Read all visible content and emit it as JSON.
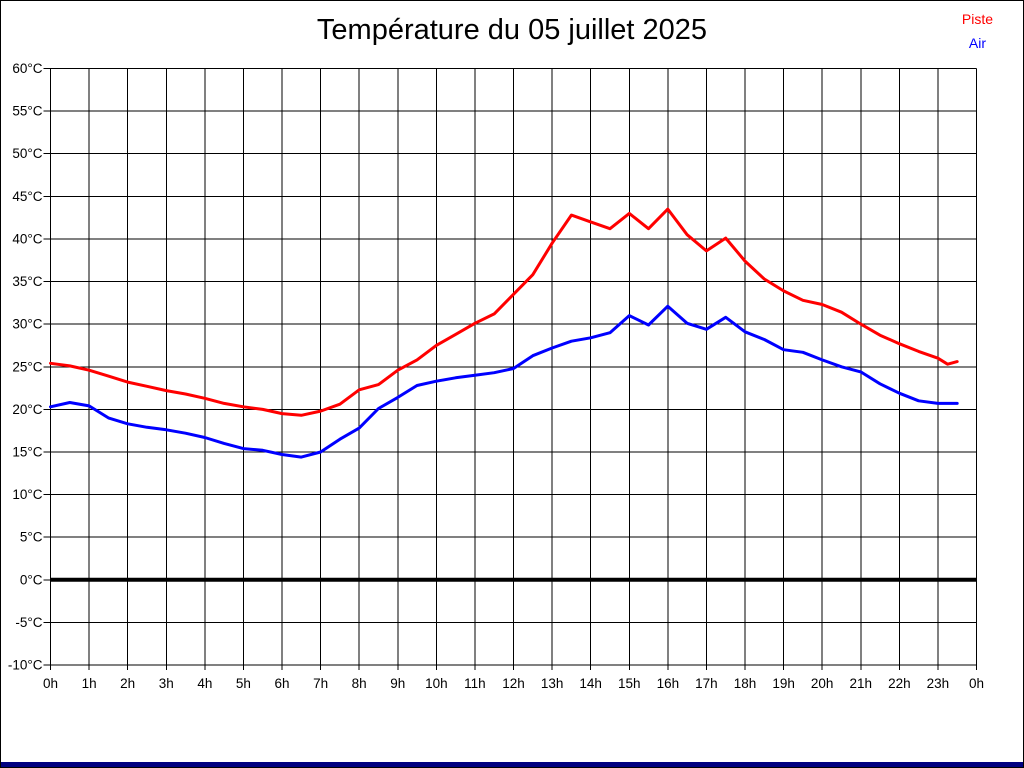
{
  "title": "Température du 05 juillet 2025",
  "legend": {
    "items": [
      {
        "label": "Piste",
        "color": "#ff0000"
      },
      {
        "label": "Air",
        "color": "#0000ff"
      }
    ]
  },
  "chart_data": {
    "type": "line",
    "title": "Température du 05 juillet 2025",
    "xlabel": "",
    "ylabel": "",
    "xlim": [
      0,
      24
    ],
    "ylim": [
      -10,
      60
    ],
    "x_step": 1,
    "y_step": 5,
    "grid": true,
    "grid_color": "#000000",
    "zero_line_value": 0,
    "zero_line_color": "#000000",
    "legend_position": "top-right",
    "x_tick_labels": [
      "0h",
      "1h",
      "2h",
      "3h",
      "4h",
      "5h",
      "6h",
      "7h",
      "8h",
      "9h",
      "10h",
      "11h",
      "12h",
      "13h",
      "14h",
      "15h",
      "16h",
      "17h",
      "18h",
      "19h",
      "20h",
      "21h",
      "22h",
      "23h",
      "0h"
    ],
    "y_tick_labels": [
      "60°C",
      "55°C",
      "50°C",
      "45°C",
      "40°C",
      "35°C",
      "30°C",
      "25°C",
      "20°C",
      "15°C",
      "10°C",
      "5°C",
      "0°C",
      "-5°C",
      "-10°C"
    ],
    "x": [
      0,
      0.5,
      1,
      1.5,
      2,
      2.5,
      3,
      3.5,
      4,
      4.5,
      5,
      5.5,
      6,
      6.5,
      7,
      7.5,
      8,
      8.5,
      9,
      9.5,
      10,
      10.5,
      11,
      11.5,
      12,
      12.5,
      13,
      13.5,
      14,
      14.5,
      15,
      15.5,
      16,
      16.5,
      17,
      17.5,
      18,
      18.5,
      19,
      19.5,
      20,
      20.5,
      21,
      21.5,
      22,
      22.5,
      23,
      23.25,
      23.5
    ],
    "series": [
      {
        "name": "Piste",
        "color": "#ff0000",
        "values": [
          25.4,
          25.1,
          24.6,
          23.9,
          23.2,
          22.7,
          22.2,
          21.8,
          21.3,
          20.7,
          20.3,
          20.0,
          19.5,
          19.3,
          19.8,
          20.6,
          22.3,
          22.9,
          24.6,
          25.8,
          27.5,
          28.8,
          30.1,
          31.2,
          33.5,
          35.8,
          39.5,
          42.8,
          42.0,
          41.2,
          43.0,
          41.2,
          43.5,
          40.5,
          38.6,
          40.1,
          37.4,
          35.3,
          33.9,
          32.8,
          32.3,
          31.4,
          30.0,
          28.7,
          27.7,
          26.8,
          26.0,
          25.3,
          25.6
        ]
      },
      {
        "name": "Air",
        "color": "#0000ff",
        "values": [
          20.3,
          20.8,
          20.4,
          19.0,
          18.3,
          17.9,
          17.6,
          17.2,
          16.7,
          16.0,
          15.4,
          15.2,
          14.7,
          14.4,
          15.0,
          16.5,
          17.8,
          20.1,
          21.4,
          22.8,
          23.3,
          23.7,
          24.0,
          24.3,
          24.8,
          26.3,
          27.2,
          28.0,
          28.4,
          29.0,
          31.0,
          29.9,
          32.1,
          30.1,
          29.4,
          30.8,
          29.1,
          28.2,
          27.0,
          26.7,
          25.8,
          25.0,
          24.4,
          23.0,
          21.9,
          21.0,
          20.7,
          20.7,
          20.7
        ]
      }
    ]
  },
  "footer": {
    "bar_color": "#000080"
  }
}
